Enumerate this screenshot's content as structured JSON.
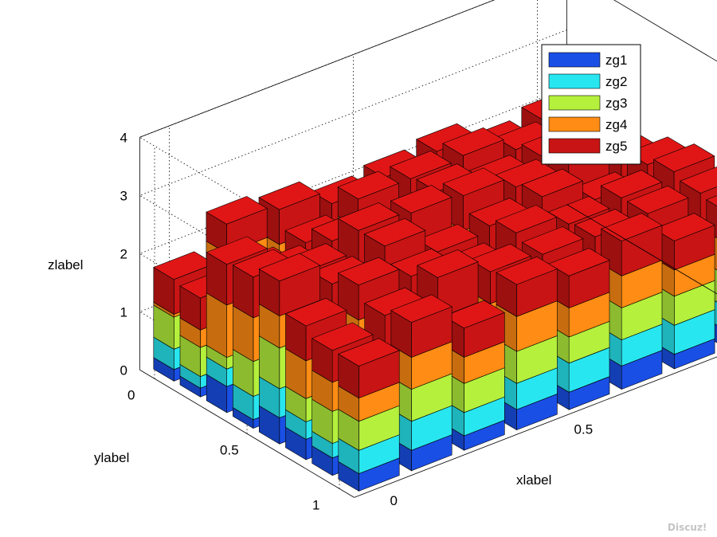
{
  "chart_data": {
    "type": "bar3-stacked",
    "title": "",
    "xlabel": "xlabel",
    "ylabel": "ylabel",
    "zlabel": "zlabel",
    "x": [
      0.0,
      0.143,
      0.286,
      0.429,
      0.571,
      0.714,
      0.857,
      1.0
    ],
    "y": [
      0.0,
      0.143,
      0.286,
      0.429,
      0.571,
      0.714,
      0.857,
      1.0
    ],
    "zlim": [
      0,
      4
    ],
    "x_ticks": [
      "0",
      "0.5",
      "1"
    ],
    "y_ticks": [
      "0",
      "0.5",
      "1"
    ],
    "z_ticks": [
      "0",
      "1",
      "2",
      "3",
      "4"
    ],
    "grid": true,
    "legend_position": "top-right",
    "series": [
      {
        "name": "zg1",
        "color": "#1a4fe6"
      },
      {
        "name": "zg2",
        "color": "#28e6f0"
      },
      {
        "name": "zg3",
        "color": "#b4f03c"
      },
      {
        "name": "zg4",
        "color": "#ff8c14"
      },
      {
        "name": "zg5",
        "color": "#c81414"
      }
    ],
    "values": [
      [
        [
          0.2,
          0.35,
          0.55,
          0.05,
          0.6
        ],
        [
          0.55,
          0.5,
          0.3,
          0.5,
          0.5
        ],
        [
          0.3,
          0.5,
          0.4,
          0.45,
          0.6
        ],
        [
          0.15,
          0.4,
          0.5,
          0.4,
          0.55
        ],
        [
          0.35,
          0.3,
          0.55,
          0.4,
          0.5
        ],
        [
          0.2,
          0.45,
          0.5,
          0.45,
          0.6
        ],
        [
          0.25,
          0.35,
          0.3,
          0.45,
          0.55
        ],
        [
          0.3,
          0.3,
          0.4,
          0.45,
          0.6
        ]
      ],
      [
        [
          0.15,
          0.2,
          0.5,
          0.3,
          0.55
        ],
        [
          0.3,
          0.4,
          0.55,
          0.05,
          0.45
        ],
        [
          0.3,
          0.5,
          0.45,
          0.2,
          0.5
        ],
        [
          0.35,
          0.4,
          0.55,
          0.55,
          0.5
        ],
        [
          0.3,
          0.55,
          0.4,
          0.5,
          0.6
        ],
        [
          0.35,
          0.5,
          0.55,
          0.4,
          0.6
        ],
        [
          0.3,
          0.4,
          0.45,
          0.45,
          0.55
        ],
        [
          0.2,
          0.35,
          0.45,
          0.5,
          0.55
        ]
      ],
      [
        [
          0.45,
          0.3,
          0.2,
          0.9,
          0.7
        ],
        [
          0.3,
          0.4,
          0.45,
          0.3,
          0.6
        ],
        [
          0.35,
          0.25,
          0.5,
          0.6,
          0.55
        ],
        [
          0.2,
          0.4,
          0.5,
          0.35,
          0.6
        ],
        [
          0.35,
          0.55,
          0.45,
          0.35,
          0.7
        ],
        [
          0.3,
          0.4,
          0.5,
          0.45,
          0.55
        ],
        [
          0.4,
          0.35,
          0.5,
          0.5,
          0.55
        ],
        [
          0.25,
          0.5,
          0.4,
          0.55,
          0.5
        ]
      ],
      [
        [
          0.15,
          0.4,
          0.6,
          0.75,
          0.7
        ],
        [
          0.3,
          0.5,
          0.7,
          0.0,
          0.85
        ],
        [
          0.3,
          0.6,
          0.5,
          0.6,
          0.7
        ],
        [
          0.25,
          0.7,
          0.55,
          0.6,
          0.55
        ],
        [
          0.35,
          0.5,
          0.55,
          0.6,
          0.6
        ],
        [
          0.3,
          0.5,
          0.6,
          0.5,
          0.5
        ],
        [
          0.4,
          0.5,
          0.55,
          0.5,
          0.55
        ],
        [
          0.2,
          0.4,
          0.55,
          0.45,
          0.5
        ]
      ],
      [
        [
          0.45,
          0.5,
          0.7,
          0.55,
          0.6
        ],
        [
          0.25,
          0.6,
          0.55,
          0.45,
          0.55
        ],
        [
          0.15,
          0.5,
          0.55,
          0.75,
          0.75
        ],
        [
          0.35,
          0.45,
          0.4,
          0.5,
          0.55
        ],
        [
          0.3,
          0.4,
          0.6,
          0.45,
          0.6
        ],
        [
          0.45,
          0.55,
          0.5,
          0.45,
          0.55
        ],
        [
          0.2,
          0.45,
          0.45,
          0.5,
          0.5
        ],
        [
          0.3,
          0.4,
          0.5,
          0.6,
          0.55
        ]
      ],
      [
        [
          0.35,
          0.3,
          0.4,
          0.65,
          0.6
        ],
        [
          0.45,
          0.55,
          0.55,
          0.5,
          0.6
        ],
        [
          0.4,
          0.5,
          0.45,
          0.55,
          0.55
        ],
        [
          0.3,
          0.5,
          0.4,
          0.5,
          0.5
        ],
        [
          0.35,
          0.6,
          0.55,
          0.45,
          0.55
        ],
        [
          0.25,
          0.45,
          0.5,
          0.55,
          0.55
        ],
        [
          0.3,
          0.4,
          0.5,
          0.6,
          0.6
        ],
        [
          0.4,
          0.5,
          0.55,
          0.5,
          0.55
        ]
      ],
      [
        [
          0.3,
          0.25,
          0.55,
          0.5,
          0.55
        ],
        [
          0.25,
          0.55,
          0.45,
          0.55,
          0.6
        ],
        [
          0.3,
          0.45,
          0.6,
          0.65,
          0.7
        ],
        [
          0.4,
          0.5,
          0.55,
          0.45,
          0.55
        ],
        [
          0.2,
          0.55,
          0.5,
          0.6,
          0.55
        ],
        [
          0.35,
          0.5,
          0.45,
          0.55,
          0.5
        ],
        [
          0.45,
          0.35,
          0.55,
          0.5,
          0.55
        ],
        [
          0.3,
          0.45,
          0.5,
          0.55,
          0.6
        ]
      ],
      [
        [
          0.3,
          0.4,
          0.5,
          0.4,
          0.55
        ],
        [
          0.35,
          0.5,
          0.55,
          0.55,
          0.6
        ],
        [
          0.25,
          0.4,
          0.5,
          0.45,
          0.5
        ],
        [
          0.35,
          0.45,
          0.55,
          0.6,
          0.55
        ],
        [
          0.3,
          0.5,
          0.45,
          0.5,
          0.55
        ],
        [
          0.4,
          0.45,
          0.55,
          0.55,
          0.6
        ],
        [
          0.25,
          0.5,
          0.5,
          0.45,
          0.5
        ],
        [
          0.3,
          0.4,
          0.55,
          0.55,
          0.55
        ]
      ]
    ]
  },
  "legend": {
    "items": [
      {
        "label": "zg1",
        "color": "#1a4fe6"
      },
      {
        "label": "zg2",
        "color": "#28e6f0"
      },
      {
        "label": "zg3",
        "color": "#b4f03c"
      },
      {
        "label": "zg4",
        "color": "#ff8c14"
      },
      {
        "label": "zg5",
        "color": "#c81414"
      }
    ]
  },
  "watermark": "Discuz!"
}
